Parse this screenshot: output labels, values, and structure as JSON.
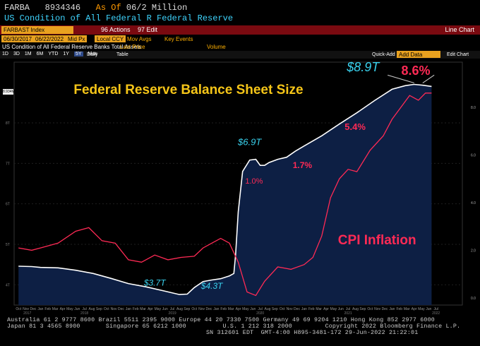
{
  "header": {
    "ticker": "FARBA",
    "code": "8934346",
    "asof_label": "As Of",
    "asof_value": "06/2 Million",
    "subtitle": "US Condition of All Federal R Federal Reserve"
  },
  "toolbar": {
    "index_field": "FARBAST Index",
    "actions_label": "96 Actions",
    "edit_label": "97 Edit",
    "chart_label": "Line Chart",
    "start_date": "06/30/2017",
    "end_date": "06/22/2022",
    "price_type": "Mid Px",
    "currency": "Local CCY",
    "mov_avgs": "Mov Avgs",
    "key_events": "Key Events",
    "series_name": "US Condition of All Federal Reserve Banks Total Assets",
    "last_price_label": "Last Price",
    "volume_label": "Volume",
    "periods": [
      "1D",
      "3D",
      "1M",
      "6M",
      "YTD",
      "1Y",
      "5Y",
      "Max"
    ],
    "selected_period": "5Y",
    "frequency": "Daily",
    "table_label": "Table",
    "quick_add": "Quick-Add",
    "add_data": "Add Data",
    "edit_chart": "Edit Chart"
  },
  "chart_data": {
    "type": "line",
    "title": "Federal Reserve Balance Sheet Size",
    "series": [
      {
        "name": "Federal Reserve Balance Sheet Size",
        "unit": "$ trillions",
        "color": "#ffffff",
        "axis": "left",
        "x": [
          2017.75,
          2017.9,
          2018.0,
          2018.2,
          2018.4,
          2018.6,
          2018.8,
          2019.0,
          2019.2,
          2019.4,
          2019.58,
          2019.67,
          2019.75,
          2019.85,
          2019.95,
          2020.05,
          2020.15,
          2020.2,
          2020.22,
          2020.25,
          2020.3,
          2020.38,
          2020.45,
          2020.5,
          2020.55,
          2020.6,
          2020.7,
          2020.8,
          2020.9,
          2021.0,
          2021.2,
          2021.4,
          2021.6,
          2021.8,
          2022.0,
          2022.15,
          2022.25,
          2022.35,
          2022.45
        ],
        "values": [
          4.46,
          4.45,
          4.43,
          4.42,
          4.36,
          4.28,
          4.16,
          4.03,
          3.95,
          3.85,
          3.76,
          3.77,
          3.93,
          4.08,
          4.12,
          4.15,
          4.22,
          4.28,
          4.75,
          5.8,
          6.8,
          7.08,
          7.1,
          6.95,
          6.95,
          7.02,
          7.1,
          7.15,
          7.3,
          7.43,
          7.68,
          7.97,
          8.25,
          8.55,
          8.83,
          8.92,
          8.95,
          8.93,
          8.9
        ]
      },
      {
        "name": "CPI Inflation",
        "unit": "% YoY",
        "color": "#ff2a55",
        "axis": "right",
        "x": [
          2017.75,
          2017.9,
          2018.0,
          2018.2,
          2018.4,
          2018.55,
          2018.7,
          2018.85,
          2019.0,
          2019.15,
          2019.3,
          2019.45,
          2019.6,
          2019.75,
          2019.85,
          2019.95,
          2020.05,
          2020.15,
          2020.25,
          2020.35,
          2020.45,
          2020.55,
          2020.7,
          2020.85,
          2021.0,
          2021.1,
          2021.2,
          2021.3,
          2021.4,
          2021.5,
          2021.6,
          2021.75,
          2021.9,
          2022.0,
          2022.1,
          2022.2,
          2022.3,
          2022.38,
          2022.45
        ],
        "values": [
          2.1,
          2.0,
          2.1,
          2.3,
          2.8,
          2.95,
          2.4,
          2.3,
          1.6,
          1.5,
          1.8,
          1.6,
          1.7,
          1.75,
          2.1,
          2.3,
          2.5,
          2.3,
          1.5,
          0.25,
          0.1,
          0.7,
          1.3,
          1.2,
          1.4,
          1.7,
          2.6,
          4.2,
          5.0,
          5.4,
          5.3,
          6.2,
          6.8,
          7.5,
          8.0,
          8.5,
          8.3,
          8.6,
          8.6
        ]
      }
    ],
    "y_left": {
      "ylim": [
        3.5,
        9.5
      ],
      "ticks": [
        4,
        5,
        6,
        7,
        8
      ],
      "tick_labels": [
        "4T",
        "5T",
        "6T",
        "7T",
        "8T"
      ]
    },
    "y_right": {
      "ylim": [
        -0.3,
        9.9
      ],
      "ticks": [
        0,
        2,
        4,
        6,
        8
      ],
      "tick_labels": [
        "0.0",
        "2.0",
        "4.0",
        "6.0",
        "8.0"
      ]
    },
    "xlim": [
      2017.7,
      2022.8
    ],
    "x_month_labels": [
      "Oct",
      "Nov",
      "Dec",
      "Jan",
      "Feb",
      "Mar",
      "Apr",
      "May",
      "Jun",
      "Jul",
      "Aug",
      "Sep",
      "Oct",
      "Nov",
      "Dec",
      "Jan",
      "Feb",
      "Mar",
      "Apr",
      "May",
      "Jun",
      "Jul",
      "Aug",
      "Sep",
      "Oct",
      "Nov",
      "Dec",
      "Jan",
      "Feb",
      "Mar",
      "Apr",
      "May",
      "Jun",
      "Jul",
      "Aug",
      "Sep",
      "Oct",
      "Nov",
      "Dec",
      "Jan",
      "Feb",
      "Mar",
      "Apr",
      "May",
      "Jun",
      "Jul",
      "Aug",
      "Sep",
      "Oct",
      "Nov",
      "Dec",
      "Jan",
      "Feb",
      "Mar",
      "Apr",
      "May",
      "Jun",
      "Jul"
    ],
    "x_year_labels": [
      {
        "label": "2017",
        "x": 2017.85
      },
      {
        "label": "2018",
        "x": 2018.5
      },
      {
        "label": "2019",
        "x": 2019.5
      },
      {
        "label": "2020",
        "x": 2020.5
      },
      {
        "label": "2021",
        "x": 2021.5
      },
      {
        "label": "2022",
        "x": 2022.5
      }
    ],
    "y_left_last_label": "8.934M",
    "annotations": [
      {
        "text": "$3.7T",
        "x": 2019.3,
        "y": 3.98,
        "axis": "left",
        "color": "#39d2ee",
        "size": 12,
        "italic": true,
        "bold": false
      },
      {
        "text": "$4.3T",
        "x": 2019.95,
        "y": 3.9,
        "axis": "left",
        "color": "#39d2ee",
        "size": 12,
        "italic": true,
        "bold": false
      },
      {
        "text": "$6.9T",
        "x": 2020.38,
        "y": 7.45,
        "axis": "left",
        "color": "#39d2ee",
        "size": 13,
        "italic": true,
        "bold": false
      },
      {
        "text": "$8.9T",
        "x": 2021.67,
        "y": 9.27,
        "axis": "left",
        "color": "#39d2ee",
        "size": 18,
        "italic": true,
        "bold": false
      },
      {
        "text": "1.0%",
        "x": 2020.43,
        "y": 4.8,
        "axis": "right",
        "color": "#ff2a55",
        "size": 11,
        "italic": false,
        "bold": false
      },
      {
        "text": "1.7%",
        "x": 2020.98,
        "y": 5.45,
        "axis": "right",
        "color": "#ff2a55",
        "size": 12,
        "italic": false,
        "bold": true
      },
      {
        "text": "5.4%",
        "x": 2021.58,
        "y": 7.05,
        "axis": "right",
        "color": "#ff2a55",
        "size": 13,
        "italic": false,
        "bold": true
      },
      {
        "text": "8.6%",
        "x": 2022.27,
        "y": 9.36,
        "axis": "right",
        "color": "#ff2a55",
        "size": 18,
        "italic": false,
        "bold": true
      },
      {
        "text": "CPI Inflation",
        "x": 2021.83,
        "y": 2.25,
        "axis": "right",
        "color": "#ff2a55",
        "size": 19,
        "italic": false,
        "bold": true
      }
    ]
  },
  "footer": {
    "line1": "Australia 61 2 9777 8600 Brazil 5511 2395 9000 Europe 44 20 7330 7500 Germany 49 69 9204 1210 Hong Kong 852 2977 6000",
    "line2": "Japan 81 3 4565 8900       Singapore 65 6212 1000          U.S. 1 212 318 2000         Copyright 2022 Bloomberg Finance L.P.",
    "line3": "SN 312601 EDT  GMT-4:00 H895-3481-172 29-Jun-2022 21:22:01"
  }
}
